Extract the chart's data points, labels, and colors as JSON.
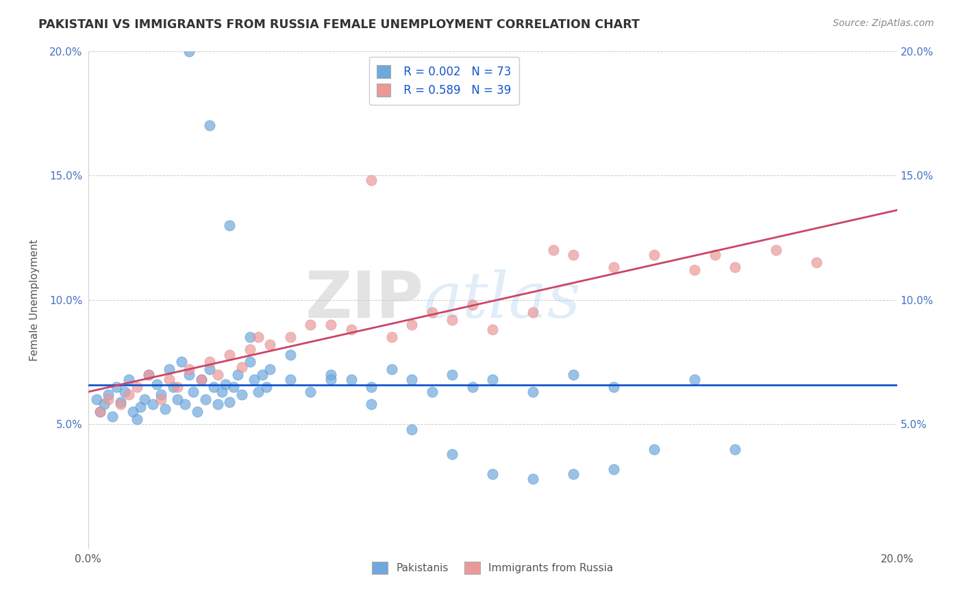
{
  "title": "PAKISTANI VS IMMIGRANTS FROM RUSSIA FEMALE UNEMPLOYMENT CORRELATION CHART",
  "source": "Source: ZipAtlas.com",
  "ylabel": "Female Unemployment",
  "xlim": [
    0.0,
    0.2
  ],
  "ylim": [
    0.0,
    0.2
  ],
  "legend_r1": "R = 0.002",
  "legend_n1": "N = 73",
  "legend_r2": "R = 0.589",
  "legend_n2": "N = 39",
  "pakistani_color": "#6fa8dc",
  "russia_color": "#ea9999",
  "pakistani_line_color": "#1155cc",
  "russia_line_color": "#cc4466",
  "watermark_zip": "ZIP",
  "watermark_atlas": "atlas",
  "pak_x": [
    0.002,
    0.003,
    0.004,
    0.005,
    0.006,
    0.007,
    0.008,
    0.009,
    0.01,
    0.011,
    0.012,
    0.013,
    0.014,
    0.015,
    0.016,
    0.017,
    0.018,
    0.019,
    0.02,
    0.021,
    0.022,
    0.023,
    0.024,
    0.025,
    0.026,
    0.027,
    0.028,
    0.029,
    0.03,
    0.031,
    0.032,
    0.033,
    0.034,
    0.035,
    0.036,
    0.037,
    0.038,
    0.04,
    0.041,
    0.042,
    0.043,
    0.044,
    0.045,
    0.05,
    0.055,
    0.06,
    0.065,
    0.07,
    0.075,
    0.08,
    0.085,
    0.09,
    0.095,
    0.1,
    0.11,
    0.12,
    0.13,
    0.14,
    0.15,
    0.16,
    0.025,
    0.03,
    0.035,
    0.04,
    0.05,
    0.06,
    0.07,
    0.08,
    0.09,
    0.1,
    0.11,
    0.12,
    0.13
  ],
  "pak_y": [
    0.06,
    0.055,
    0.058,
    0.062,
    0.053,
    0.065,
    0.059,
    0.063,
    0.068,
    0.055,
    0.052,
    0.057,
    0.06,
    0.07,
    0.058,
    0.066,
    0.062,
    0.056,
    0.072,
    0.065,
    0.06,
    0.075,
    0.058,
    0.07,
    0.063,
    0.055,
    0.068,
    0.06,
    0.072,
    0.065,
    0.058,
    0.063,
    0.066,
    0.059,
    0.065,
    0.07,
    0.062,
    0.075,
    0.068,
    0.063,
    0.07,
    0.065,
    0.072,
    0.068,
    0.063,
    0.07,
    0.068,
    0.065,
    0.072,
    0.068,
    0.063,
    0.07,
    0.065,
    0.068,
    0.063,
    0.07,
    0.065,
    0.04,
    0.068,
    0.04,
    0.2,
    0.17,
    0.13,
    0.085,
    0.078,
    0.068,
    0.058,
    0.048,
    0.038,
    0.03,
    0.028,
    0.03,
    0.032
  ],
  "rus_x": [
    0.003,
    0.005,
    0.008,
    0.01,
    0.012,
    0.015,
    0.018,
    0.02,
    0.022,
    0.025,
    0.028,
    0.03,
    0.032,
    0.035,
    0.038,
    0.04,
    0.042,
    0.045,
    0.05,
    0.055,
    0.06,
    0.065,
    0.07,
    0.075,
    0.08,
    0.085,
    0.09,
    0.095,
    0.1,
    0.11,
    0.115,
    0.12,
    0.13,
    0.14,
    0.15,
    0.155,
    0.16,
    0.17,
    0.18
  ],
  "rus_y": [
    0.055,
    0.06,
    0.058,
    0.062,
    0.065,
    0.07,
    0.06,
    0.068,
    0.065,
    0.072,
    0.068,
    0.075,
    0.07,
    0.078,
    0.073,
    0.08,
    0.085,
    0.082,
    0.085,
    0.09,
    0.09,
    0.088,
    0.148,
    0.085,
    0.09,
    0.095,
    0.092,
    0.098,
    0.088,
    0.095,
    0.12,
    0.118,
    0.113,
    0.118,
    0.112,
    0.118,
    0.113,
    0.12,
    0.115
  ]
}
